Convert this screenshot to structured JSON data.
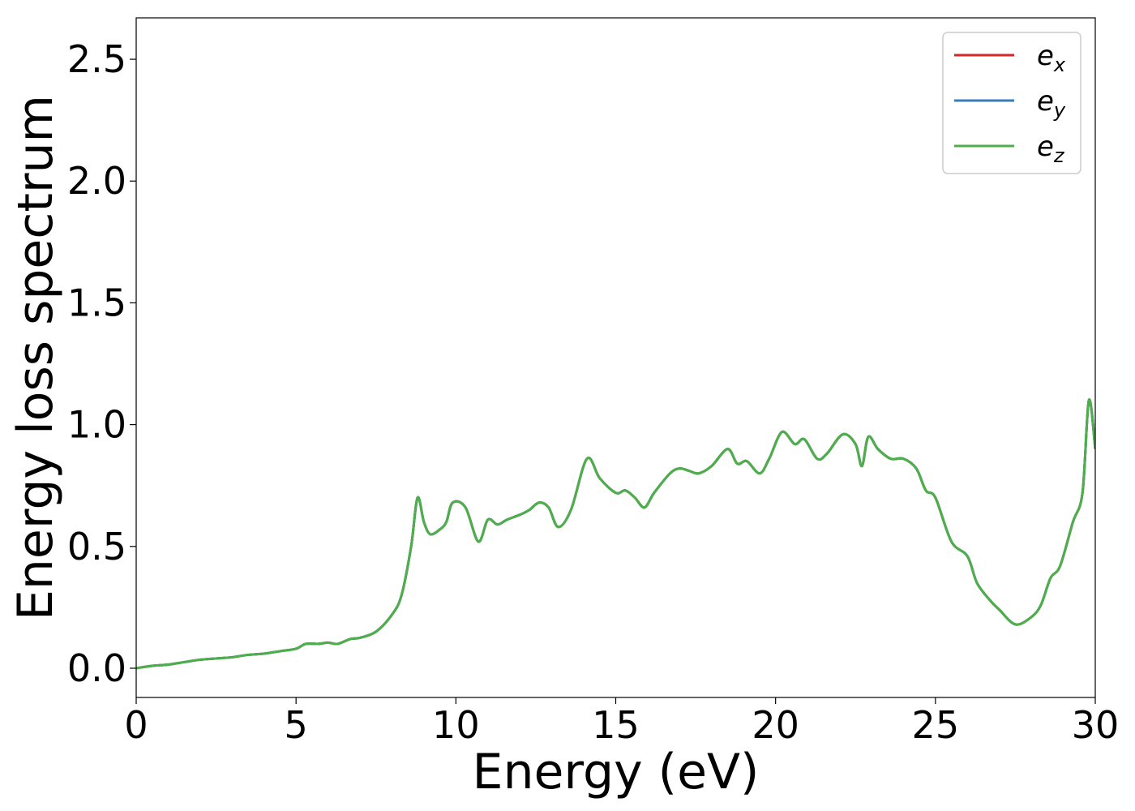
{
  "chart_data": {
    "type": "line",
    "title": "",
    "xlabel": "Energy (eV)",
    "ylabel": "Energy loss spectrum",
    "xlim": [
      0,
      30
    ],
    "ylim": [
      -0.12,
      2.67
    ],
    "xticks": [
      0,
      5,
      10,
      15,
      20,
      25,
      30
    ],
    "xtick_labels": [
      "0",
      "5",
      "10",
      "15",
      "20",
      "25",
      "30"
    ],
    "yticks": [
      0.0,
      0.5,
      1.0,
      1.5,
      2.0,
      2.5
    ],
    "ytick_labels": [
      "0.0",
      "0.5",
      "1.0",
      "1.5",
      "2.0",
      "2.5"
    ],
    "grid": false,
    "legend_position": "top-right",
    "x": [
      0,
      0.5,
      1,
      1.5,
      2,
      2.5,
      3,
      3.5,
      4,
      4.5,
      5,
      5.3,
      5.7,
      6,
      6.3,
      6.7,
      7,
      7.5,
      8,
      8.3,
      8.6,
      8.8,
      9,
      9.2,
      9.5,
      9.7,
      9.9,
      10.3,
      10.7,
      11,
      11.3,
      11.6,
      12,
      12.3,
      12.6,
      12.9,
      13.2,
      13.6,
      14.1,
      14.5,
      15,
      15.3,
      15.6,
      15.9,
      16.2,
      16.7,
      17.0,
      17.3,
      17.6,
      18.0,
      18.5,
      18.8,
      19.1,
      19.5,
      19.8,
      20.2,
      20.6,
      20.9,
      21.3,
      21.6,
      22.1,
      22.5,
      22.7,
      22.9,
      23.2,
      23.6,
      24.0,
      24.4,
      24.7,
      25.0,
      25.5,
      26.0,
      26.3,
      26.7,
      27.0,
      27.5,
      28.0,
      28.3,
      28.6,
      28.9,
      29.3,
      29.6,
      29.8,
      30.0
    ],
    "series": [
      {
        "name": "e_x",
        "legend": {
          "base": "e",
          "sub": "x"
        },
        "color": "#d62728",
        "values": [
          0.0,
          0.01,
          0.015,
          0.025,
          0.035,
          0.04,
          0.045,
          0.055,
          0.06,
          0.07,
          0.08,
          0.1,
          0.1,
          0.105,
          0.1,
          0.12,
          0.125,
          0.15,
          0.22,
          0.3,
          0.5,
          0.7,
          0.6,
          0.55,
          0.57,
          0.6,
          0.68,
          0.66,
          0.52,
          0.61,
          0.59,
          0.61,
          0.63,
          0.65,
          0.68,
          0.66,
          0.58,
          0.65,
          0.86,
          0.78,
          0.72,
          0.73,
          0.7,
          0.66,
          0.72,
          0.8,
          0.82,
          0.81,
          0.8,
          0.83,
          0.9,
          0.84,
          0.85,
          0.8,
          0.86,
          0.97,
          0.92,
          0.94,
          0.86,
          0.88,
          0.96,
          0.92,
          0.83,
          0.95,
          0.9,
          0.86,
          0.86,
          0.82,
          0.73,
          0.7,
          0.52,
          0.46,
          0.35,
          0.28,
          0.24,
          0.18,
          0.21,
          0.26,
          0.37,
          0.42,
          0.6,
          0.72,
          1.1,
          0.9
        ]
      },
      {
        "name": "e_y",
        "legend": {
          "base": "e",
          "sub": "y"
        },
        "color": "#377eb8",
        "values": [
          0.0,
          0.01,
          0.015,
          0.025,
          0.035,
          0.04,
          0.045,
          0.055,
          0.06,
          0.07,
          0.08,
          0.1,
          0.1,
          0.105,
          0.1,
          0.12,
          0.125,
          0.15,
          0.22,
          0.3,
          0.5,
          0.7,
          0.6,
          0.55,
          0.57,
          0.6,
          0.68,
          0.66,
          0.52,
          0.61,
          0.59,
          0.61,
          0.63,
          0.65,
          0.68,
          0.66,
          0.58,
          0.65,
          0.86,
          0.78,
          0.72,
          0.73,
          0.7,
          0.66,
          0.72,
          0.8,
          0.82,
          0.81,
          0.8,
          0.83,
          0.9,
          0.84,
          0.85,
          0.8,
          0.86,
          0.97,
          0.92,
          0.94,
          0.86,
          0.88,
          0.96,
          0.92,
          0.83,
          0.95,
          0.9,
          0.86,
          0.86,
          0.82,
          0.73,
          0.7,
          0.52,
          0.46,
          0.35,
          0.28,
          0.24,
          0.18,
          0.21,
          0.26,
          0.37,
          0.42,
          0.6,
          0.72,
          1.1,
          0.9
        ]
      },
      {
        "name": "e_z",
        "legend": {
          "base": "e",
          "sub": "z"
        },
        "color": "#4daf4a",
        "values": [
          0.0,
          0.01,
          0.015,
          0.025,
          0.035,
          0.04,
          0.045,
          0.055,
          0.06,
          0.07,
          0.08,
          0.1,
          0.1,
          0.105,
          0.1,
          0.12,
          0.125,
          0.15,
          0.22,
          0.3,
          0.5,
          0.7,
          0.6,
          0.55,
          0.57,
          0.6,
          0.68,
          0.66,
          0.52,
          0.61,
          0.59,
          0.61,
          0.63,
          0.65,
          0.68,
          0.66,
          0.58,
          0.65,
          0.86,
          0.78,
          0.72,
          0.73,
          0.7,
          0.66,
          0.72,
          0.8,
          0.82,
          0.81,
          0.8,
          0.83,
          0.9,
          0.84,
          0.85,
          0.8,
          0.86,
          0.97,
          0.92,
          0.94,
          0.86,
          0.88,
          0.96,
          0.92,
          0.83,
          0.95,
          0.9,
          0.86,
          0.86,
          0.82,
          0.73,
          0.7,
          0.52,
          0.46,
          0.35,
          0.28,
          0.24,
          0.18,
          0.21,
          0.26,
          0.37,
          0.42,
          0.6,
          0.72,
          1.1,
          0.9
        ]
      }
    ]
  }
}
